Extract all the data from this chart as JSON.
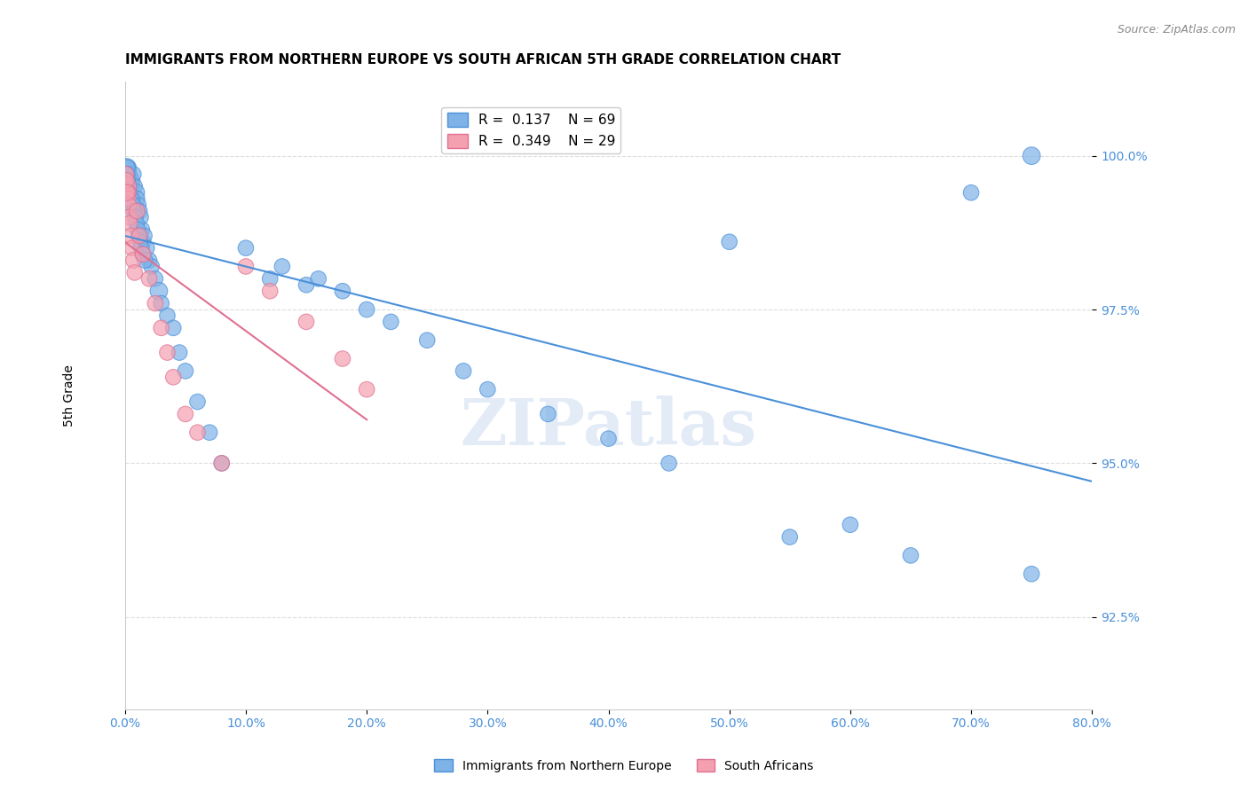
{
  "title": "IMMIGRANTS FROM NORTHERN EUROPE VS SOUTH AFRICAN 5TH GRADE CORRELATION CHART",
  "source": "Source: ZipAtlas.com",
  "xlabel_ticks": [
    "0.0%",
    "10.0%",
    "20.0%",
    "30.0%",
    "40.0%",
    "50.0%",
    "60.0%",
    "70.0%",
    "80.0%"
  ],
  "xlabel_vals": [
    0.0,
    10.0,
    20.0,
    30.0,
    40.0,
    50.0,
    60.0,
    70.0,
    80.0
  ],
  "ylabel": "5th Grade",
  "ylabel_ticks": [
    "92.5%",
    "95.0%",
    "97.5%",
    "100.0%"
  ],
  "ylabel_vals": [
    92.5,
    95.0,
    97.5,
    100.0
  ],
  "xlim": [
    0.0,
    80.0
  ],
  "ylim": [
    91.0,
    101.2
  ],
  "blue_color": "#7fb3e8",
  "pink_color": "#f4a0b0",
  "blue_line_color": "#4a90d9",
  "pink_line_color": "#e07090",
  "legend_blue_label": "R =  0.137    N = 69",
  "legend_pink_label": "R =  0.349    N = 29",
  "legend_label1": "Immigrants from Northern Europe",
  "legend_label2": "South Africans",
  "watermark": "ZIPatlas",
  "blue_R": 0.137,
  "blue_N": 69,
  "pink_R": 0.349,
  "pink_N": 29,
  "blue_x": [
    0.15,
    0.2,
    0.25,
    0.3,
    0.35,
    0.4,
    0.45,
    0.5,
    0.6,
    0.7,
    0.8,
    0.9,
    1.0,
    1.1,
    1.2,
    1.3,
    1.4,
    1.5,
    1.6,
    1.8,
    2.0,
    2.2,
    2.5,
    2.8,
    3.0,
    3.5,
    4.0,
    4.5,
    5.0,
    6.0,
    7.0,
    8.0,
    10.0,
    12.0,
    13.0,
    15.0,
    16.0,
    18.0,
    20.0,
    22.0,
    25.0,
    28.0,
    30.0,
    35.0,
    40.0,
    45.0,
    50.0,
    55.0,
    60.0,
    65.0,
    70.0,
    75.0,
    0.12,
    0.18,
    0.22,
    0.28,
    0.32,
    0.55,
    0.65,
    0.75,
    0.85,
    0.95,
    1.05,
    1.15,
    1.25,
    1.35,
    1.45,
    1.65,
    75.0
  ],
  "blue_y": [
    99.8,
    99.7,
    99.8,
    99.6,
    99.7,
    99.5,
    99.6,
    99.5,
    99.6,
    99.7,
    99.5,
    99.4,
    99.3,
    99.2,
    99.1,
    99.0,
    98.8,
    98.6,
    98.7,
    98.5,
    98.3,
    98.2,
    98.0,
    97.8,
    97.6,
    97.4,
    97.2,
    96.8,
    96.5,
    96.0,
    95.5,
    95.0,
    98.5,
    98.0,
    98.2,
    97.9,
    98.0,
    97.8,
    97.5,
    97.3,
    97.0,
    96.5,
    96.2,
    95.8,
    95.4,
    95.0,
    98.6,
    93.8,
    94.0,
    93.5,
    99.4,
    93.2,
    99.8,
    99.7,
    99.6,
    99.5,
    99.4,
    99.3,
    99.2,
    99.1,
    99.0,
    98.9,
    98.8,
    98.7,
    98.6,
    98.5,
    98.4,
    98.3,
    100.0
  ],
  "blue_sizes": [
    30,
    25,
    20,
    20,
    20,
    25,
    20,
    20,
    20,
    20,
    20,
    25,
    20,
    20,
    20,
    20,
    20,
    20,
    20,
    20,
    20,
    20,
    20,
    25,
    20,
    20,
    20,
    20,
    20,
    20,
    20,
    20,
    20,
    20,
    20,
    20,
    20,
    20,
    20,
    20,
    20,
    20,
    20,
    20,
    20,
    20,
    20,
    20,
    20,
    20,
    20,
    20,
    25,
    20,
    20,
    20,
    20,
    20,
    20,
    20,
    20,
    20,
    20,
    20,
    20,
    20,
    20,
    20,
    25
  ],
  "pink_x": [
    0.1,
    0.15,
    0.2,
    0.25,
    0.3,
    0.35,
    0.4,
    0.5,
    0.6,
    0.7,
    0.8,
    1.0,
    1.2,
    1.5,
    2.0,
    2.5,
    3.0,
    3.5,
    4.0,
    5.0,
    6.0,
    8.0,
    10.0,
    12.0,
    15.0,
    18.0,
    20.0,
    0.12,
    0.18
  ],
  "pink_y": [
    99.7,
    99.5,
    99.4,
    99.3,
    99.2,
    99.0,
    98.9,
    98.7,
    98.5,
    98.3,
    98.1,
    99.1,
    98.7,
    98.4,
    98.0,
    97.6,
    97.2,
    96.8,
    96.4,
    95.8,
    95.5,
    95.0,
    98.2,
    97.8,
    97.3,
    96.7,
    96.2,
    99.6,
    99.4
  ],
  "pink_sizes": [
    20,
    30,
    25,
    20,
    20,
    20,
    20,
    20,
    20,
    20,
    20,
    20,
    20,
    20,
    20,
    20,
    20,
    20,
    20,
    20,
    20,
    20,
    20,
    20,
    20,
    20,
    20,
    20,
    20
  ]
}
